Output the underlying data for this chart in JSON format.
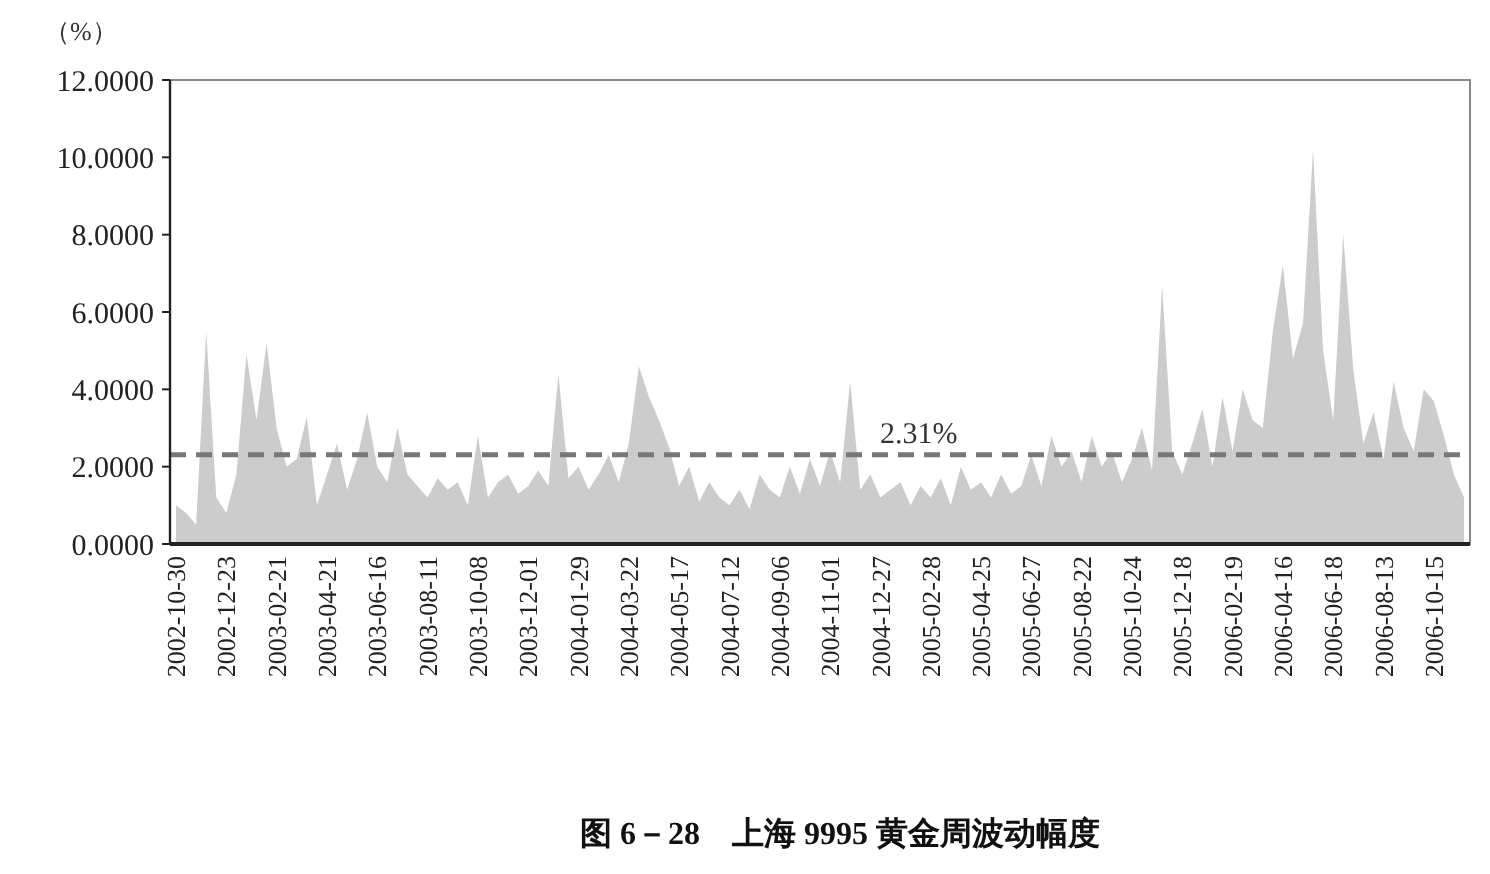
{
  "chart_data": {
    "type": "area",
    "title": "图 6－28　上海 9995 黄金周波动幅度",
    "ylabel": "（%）",
    "categories": [
      "2002-10-30",
      null,
      null,
      null,
      null,
      "2002-12-23",
      null,
      null,
      null,
      null,
      "2003-02-21",
      null,
      null,
      null,
      null,
      "2003-04-21",
      null,
      null,
      null,
      null,
      "2003-06-16",
      null,
      null,
      null,
      null,
      "2003-08-11",
      null,
      null,
      null,
      null,
      "2003-10-08",
      null,
      null,
      null,
      null,
      "2003-12-01",
      null,
      null,
      null,
      null,
      "2004-01-29",
      null,
      null,
      null,
      null,
      "2004-03-22",
      null,
      null,
      null,
      null,
      "2004-05-17",
      null,
      null,
      null,
      null,
      "2004-07-12",
      null,
      null,
      null,
      null,
      "2004-09-06",
      null,
      null,
      null,
      null,
      "2004-11-01",
      null,
      null,
      null,
      null,
      "2004-12-27",
      null,
      null,
      null,
      null,
      "2005-02-28",
      null,
      null,
      null,
      null,
      "2005-04-25",
      null,
      null,
      null,
      null,
      "2005-06-27",
      null,
      null,
      null,
      null,
      "2005-08-22",
      null,
      null,
      null,
      null,
      "2005-10-24",
      null,
      null,
      null,
      null,
      "2005-12-18",
      null,
      null,
      null,
      null,
      "2006-02-19",
      null,
      null,
      null,
      null,
      "2006-04-16",
      null,
      null,
      null,
      null,
      "2006-06-18",
      null,
      null,
      null,
      null,
      "2006-08-13",
      null,
      null,
      null,
      null,
      "2006-10-15",
      null,
      null,
      null
    ],
    "values": [
      1.0,
      0.8,
      0.5,
      5.5,
      1.2,
      0.8,
      1.8,
      4.9,
      3.2,
      5.2,
      3.0,
      2.0,
      2.2,
      3.3,
      1.0,
      1.8,
      2.6,
      1.4,
      2.2,
      3.4,
      2.0,
      1.6,
      3.0,
      1.8,
      1.5,
      1.2,
      1.7,
      1.4,
      1.6,
      1.0,
      2.8,
      1.2,
      1.6,
      1.8,
      1.3,
      1.5,
      1.9,
      1.5,
      4.4,
      1.7,
      2.0,
      1.4,
      1.8,
      2.3,
      1.6,
      2.6,
      4.6,
      3.8,
      3.2,
      2.5,
      1.5,
      2.0,
      1.1,
      1.6,
      1.2,
      1.0,
      1.4,
      0.9,
      1.8,
      1.4,
      1.2,
      2.0,
      1.3,
      2.2,
      1.5,
      2.4,
      1.6,
      4.2,
      1.4,
      1.8,
      1.2,
      1.4,
      1.6,
      1.0,
      1.5,
      1.2,
      1.7,
      1.0,
      2.0,
      1.4,
      1.6,
      1.2,
      1.8,
      1.3,
      1.5,
      2.3,
      1.5,
      2.8,
      2.0,
      2.4,
      1.6,
      2.8,
      2.0,
      2.4,
      1.6,
      2.2,
      3.0,
      1.9,
      6.7,
      2.4,
      1.8,
      2.6,
      3.5,
      2.0,
      3.8,
      2.4,
      4.0,
      3.2,
      3.0,
      5.5,
      7.2,
      4.8,
      5.7,
      10.2,
      5.0,
      3.2,
      8.0,
      4.5,
      2.6,
      3.4,
      2.2,
      4.2,
      3.0,
      2.4,
      4.0,
      3.7,
      2.8,
      1.8,
      1.2
    ],
    "color": "#cccccc",
    "ylim": [
      0,
      12
    ],
    "yticks": [
      {
        "value": 0,
        "label": "0.0000"
      },
      {
        "value": 2,
        "label": "2.0000"
      },
      {
        "value": 4,
        "label": "4.0000"
      },
      {
        "value": 6,
        "label": "6.0000"
      },
      {
        "value": 8,
        "label": "8.0000"
      },
      {
        "value": 10,
        "label": "10.0000"
      },
      {
        "value": 12,
        "label": "12.0000"
      }
    ],
    "ref_lines": [
      {
        "axis": "y",
        "value": 2.31,
        "label": "2.31%",
        "color": "#777777",
        "line_style": "dashed"
      }
    ],
    "grid": false
  }
}
